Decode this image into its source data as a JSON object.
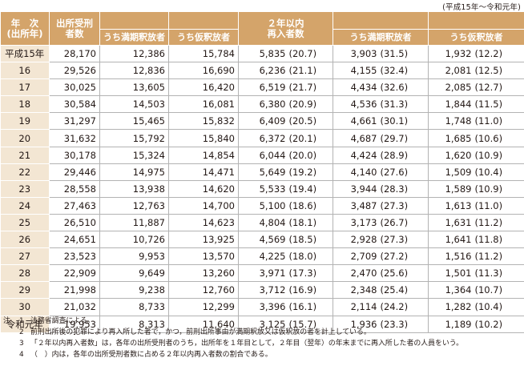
{
  "period_label": "(平成15年～令和元年)",
  "header": {
    "year": "年　次\n(出所年)",
    "released": "出所受刑\n者数",
    "released_expiry": "うち満期釈放者",
    "released_parole": "うち仮釈放者",
    "reentered": "２年以内\n再入者数",
    "reentered_expiry": "うち満期釈放者",
    "reentered_parole": "うち仮釈放者"
  },
  "rows": [
    {
      "year": "平成15年",
      "released": "28,170",
      "rel_exp": "12,386",
      "rel_par": "15,784",
      "re_n": "5,835",
      "re_p": "(20.7)",
      "re_exp_n": "3,903",
      "re_exp_p": "(31.5)",
      "re_par_n": "1,932",
      "re_par_p": "(12.2)"
    },
    {
      "year": "16",
      "released": "29,526",
      "rel_exp": "12,836",
      "rel_par": "16,690",
      "re_n": "6,236",
      "re_p": "(21.1)",
      "re_exp_n": "4,155",
      "re_exp_p": "(32.4)",
      "re_par_n": "2,081",
      "re_par_p": "(12.5)"
    },
    {
      "year": "17",
      "released": "30,025",
      "rel_exp": "13,605",
      "rel_par": "16,420",
      "re_n": "6,519",
      "re_p": "(21.7)",
      "re_exp_n": "4,434",
      "re_exp_p": "(32.6)",
      "re_par_n": "2,085",
      "re_par_p": "(12.7)"
    },
    {
      "year": "18",
      "released": "30,584",
      "rel_exp": "14,503",
      "rel_par": "16,081",
      "re_n": "6,380",
      "re_p": "(20.9)",
      "re_exp_n": "4,536",
      "re_exp_p": "(31.3)",
      "re_par_n": "1,844",
      "re_par_p": "(11.5)"
    },
    {
      "year": "19",
      "released": "31,297",
      "rel_exp": "15,465",
      "rel_par": "15,832",
      "re_n": "6,409",
      "re_p": "(20.5)",
      "re_exp_n": "4,661",
      "re_exp_p": "(30.1)",
      "re_par_n": "1,748",
      "re_par_p": "(11.0)"
    },
    {
      "year": "20",
      "released": "31,632",
      "rel_exp": "15,792",
      "rel_par": "15,840",
      "re_n": "6,372",
      "re_p": "(20.1)",
      "re_exp_n": "4,687",
      "re_exp_p": "(29.7)",
      "re_par_n": "1,685",
      "re_par_p": "(10.6)"
    },
    {
      "year": "21",
      "released": "30,178",
      "rel_exp": "15,324",
      "rel_par": "14,854",
      "re_n": "6,044",
      "re_p": "(20.0)",
      "re_exp_n": "4,424",
      "re_exp_p": "(28.9)",
      "re_par_n": "1,620",
      "re_par_p": "(10.9)"
    },
    {
      "year": "22",
      "released": "29,446",
      "rel_exp": "14,975",
      "rel_par": "14,471",
      "re_n": "5,649",
      "re_p": "(19.2)",
      "re_exp_n": "4,140",
      "re_exp_p": "(27.6)",
      "re_par_n": "1,509",
      "re_par_p": "(10.4)"
    },
    {
      "year": "23",
      "released": "28,558",
      "rel_exp": "13,938",
      "rel_par": "14,620",
      "re_n": "5,533",
      "re_p": "(19.4)",
      "re_exp_n": "3,944",
      "re_exp_p": "(28.3)",
      "re_par_n": "1,589",
      "re_par_p": "(10.9)"
    },
    {
      "year": "24",
      "released": "27,463",
      "rel_exp": "12,763",
      "rel_par": "14,700",
      "re_n": "5,100",
      "re_p": "(18.6)",
      "re_exp_n": "3,487",
      "re_exp_p": "(27.3)",
      "re_par_n": "1,613",
      "re_par_p": "(11.0)"
    },
    {
      "year": "25",
      "released": "26,510",
      "rel_exp": "11,887",
      "rel_par": "14,623",
      "re_n": "4,804",
      "re_p": "(18.1)",
      "re_exp_n": "3,173",
      "re_exp_p": "(26.7)",
      "re_par_n": "1,631",
      "re_par_p": "(11.2)"
    },
    {
      "year": "26",
      "released": "24,651",
      "rel_exp": "10,726",
      "rel_par": "13,925",
      "re_n": "4,569",
      "re_p": "(18.5)",
      "re_exp_n": "2,928",
      "re_exp_p": "(27.3)",
      "re_par_n": "1,641",
      "re_par_p": "(11.8)"
    },
    {
      "year": "27",
      "released": "23,523",
      "rel_exp": "9,953",
      "rel_par": "13,570",
      "re_n": "4,225",
      "re_p": "(18.0)",
      "re_exp_n": "2,709",
      "re_exp_p": "(27.2)",
      "re_par_n": "1,516",
      "re_par_p": "(11.2)"
    },
    {
      "year": "28",
      "released": "22,909",
      "rel_exp": "9,649",
      "rel_par": "13,260",
      "re_n": "3,971",
      "re_p": "(17.3)",
      "re_exp_n": "2,470",
      "re_exp_p": "(25.6)",
      "re_par_n": "1,501",
      "re_par_p": "(11.3)"
    },
    {
      "year": "29",
      "released": "21,998",
      "rel_exp": "9,238",
      "rel_par": "12,760",
      "re_n": "3,712",
      "re_p": "(16.9)",
      "re_exp_n": "2,348",
      "re_exp_p": "(25.4)",
      "re_par_n": "1,364",
      "re_par_p": "(10.7)"
    },
    {
      "year": "30",
      "released": "21,032",
      "rel_exp": "8,733",
      "rel_par": "12,299",
      "re_n": "3,396",
      "re_p": "(16.1)",
      "re_exp_n": "2,114",
      "re_exp_p": "(24.2)",
      "re_par_n": "1,282",
      "re_par_p": "(10.4)"
    },
    {
      "year": "令和元年",
      "released": "19,953",
      "rel_exp": "8,313",
      "rel_par": "11,640",
      "re_n": "3,125",
      "re_p": "(15.7)",
      "re_exp_n": "1,936",
      "re_exp_p": "(23.3)",
      "re_par_n": "1,189",
      "re_par_p": "(10.2)"
    }
  ],
  "notes": {
    "label": "注",
    "items": [
      {
        "no": "1",
        "text": "法務省調査による。"
      },
      {
        "no": "2",
        "text": "前刑出所後の犯罪により再入所した者で，かつ，前刑出所事由が満期釈放又は仮釈放の者を計上している。"
      },
      {
        "no": "3",
        "text": "「２年以内再入者数」は，各年の出所受刑者のうち，出所年を１年目として，２年目（翌年）の年末までに再入所した者の人員をいう。"
      },
      {
        "no": "4",
        "text": "（　）内は，各年の出所受刑者数に占める２年以内再入者数の割合である。"
      }
    ]
  }
}
